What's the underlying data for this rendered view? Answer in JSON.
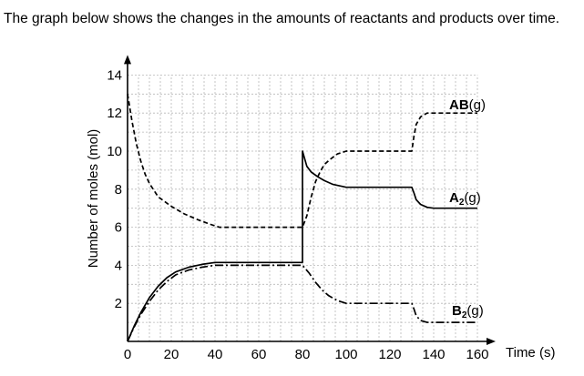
{
  "question_text": "The graph below shows the changes in the amounts of reactants and products over time.",
  "chart_data": {
    "type": "line",
    "title": "",
    "xlabel": "Time (s)",
    "ylabel": "Number of moles (mol)",
    "xlim": [
      0,
      160
    ],
    "ylim": [
      0,
      14
    ],
    "x_ticks": [
      0,
      20,
      40,
      60,
      80,
      100,
      120,
      140,
      160
    ],
    "y_ticks": [
      2,
      4,
      6,
      8,
      10,
      12,
      14
    ],
    "grid": true,
    "series": [
      {
        "name": "AB(g)",
        "label_main": "AB",
        "label_suffix": "(g)",
        "style": "dashed",
        "points": [
          [
            0,
            13
          ],
          [
            2,
            11.6
          ],
          [
            4,
            10.4
          ],
          [
            6,
            9.5
          ],
          [
            8,
            8.8
          ],
          [
            10,
            8.3
          ],
          [
            14,
            7.6
          ],
          [
            20,
            7.1
          ],
          [
            26,
            6.7
          ],
          [
            32,
            6.4
          ],
          [
            38,
            6.15
          ],
          [
            42,
            6.0
          ],
          [
            60,
            6.0
          ],
          [
            80,
            6.0
          ],
          [
            82,
            6.6
          ],
          [
            84,
            7.6
          ],
          [
            86,
            8.4
          ],
          [
            88,
            8.9
          ],
          [
            90,
            9.3
          ],
          [
            93,
            9.6
          ],
          [
            96,
            9.85
          ],
          [
            100,
            10.0
          ],
          [
            130,
            10.0
          ],
          [
            131,
            10.8
          ],
          [
            132,
            11.4
          ],
          [
            134,
            11.8
          ],
          [
            137,
            12.0
          ],
          [
            160,
            12.0
          ]
        ]
      },
      {
        "name": "A2(g)",
        "label_main": "A",
        "label_sub": "2",
        "label_suffix": "(g)",
        "style": "solid",
        "points": [
          [
            0,
            0
          ],
          [
            3,
            0.8
          ],
          [
            6,
            1.5
          ],
          [
            10,
            2.3
          ],
          [
            14,
            2.9
          ],
          [
            18,
            3.35
          ],
          [
            22,
            3.65
          ],
          [
            28,
            3.9
          ],
          [
            34,
            4.05
          ],
          [
            40,
            4.15
          ],
          [
            60,
            4.15
          ],
          [
            80,
            4.15
          ],
          [
            80,
            10
          ],
          [
            82,
            9.2
          ],
          [
            84,
            8.9
          ],
          [
            87,
            8.65
          ],
          [
            90,
            8.45
          ],
          [
            94,
            8.25
          ],
          [
            100,
            8.1
          ],
          [
            130,
            8.1
          ],
          [
            131,
            7.8
          ],
          [
            132,
            7.45
          ],
          [
            134,
            7.2
          ],
          [
            137,
            7.05
          ],
          [
            140,
            7.0
          ],
          [
            160,
            7.0
          ]
        ]
      },
      {
        "name": "B2(g)",
        "label_main": "B",
        "label_sub": "2",
        "label_suffix": "(g)",
        "style": "dashdot",
        "points": [
          [
            0,
            0
          ],
          [
            3,
            0.75
          ],
          [
            6,
            1.4
          ],
          [
            10,
            2.1
          ],
          [
            14,
            2.7
          ],
          [
            18,
            3.15
          ],
          [
            22,
            3.5
          ],
          [
            28,
            3.75
          ],
          [
            34,
            3.9
          ],
          [
            40,
            4.0
          ],
          [
            60,
            4.0
          ],
          [
            80,
            4.0
          ],
          [
            83,
            3.6
          ],
          [
            86,
            3.1
          ],
          [
            89,
            2.7
          ],
          [
            92,
            2.4
          ],
          [
            96,
            2.15
          ],
          [
            100,
            2.0
          ],
          [
            130,
            2.0
          ],
          [
            131,
            1.7
          ],
          [
            132,
            1.35
          ],
          [
            134,
            1.1
          ],
          [
            137,
            1.0
          ],
          [
            140,
            1.0
          ],
          [
            160,
            1.0
          ]
        ]
      }
    ]
  }
}
